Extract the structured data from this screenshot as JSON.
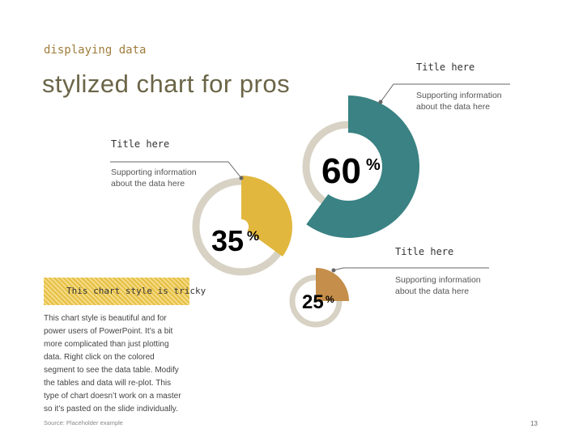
{
  "header": {
    "kicker": "displaying data",
    "title": "stylized chart for pros"
  },
  "chart_data": {
    "type": "pie",
    "title": "",
    "series": [
      {
        "value": 60,
        "label": "60",
        "callout_title": "Title here",
        "callout_info_1": "Supporting information",
        "callout_info_2": "about the data here",
        "color": "#3a8283"
      },
      {
        "value": 35,
        "label": "35",
        "callout_title": "Title here",
        "callout_info_1": "Supporting information",
        "callout_info_2": "about the data here",
        "color": "#e1b73d"
      },
      {
        "value": 25,
        "label": "25",
        "callout_title": "Title here",
        "callout_info_1": "Supporting information",
        "callout_info_2": "about the data  here",
        "color": "#c58e4a"
      }
    ],
    "percent_symbol": "%",
    "ring_color": "#d7d2c4",
    "line_color": "#666666"
  },
  "sidebar": {
    "callout": "This chart style is tricky",
    "body_lines": [
      "This chart style is beautiful and for",
      "power users of PowerPoint. It’s a bit",
      "more complicated than just plotting",
      "data. Right click on the colored",
      "segment to see the data table. Modify",
      "the tables and data will re-plot. This",
      "type of chart doesn’t work on a master",
      "so it’s pasted on the slide individually."
    ]
  },
  "footer": {
    "source": "Source: Placeholder example",
    "page": "13"
  }
}
